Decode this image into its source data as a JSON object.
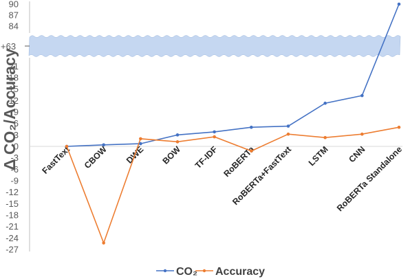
{
  "chart_data": {
    "type": "line",
    "title": "",
    "xlabel": "",
    "ylabel": "Δ CO₂/Accuracy",
    "categories": [
      "FastText",
      "CBOW",
      "DWE",
      "BOW",
      "TF-IDF",
      "RoBERTa",
      "RoBERTa+FastText",
      "LSTM",
      "CNN",
      "RoBERTa Standalone"
    ],
    "series": [
      {
        "name": "CO₂",
        "color": "#4472C4",
        "values": [
          0,
          0.4,
          0.7,
          3.0,
          3.8,
          5.0,
          5.3,
          11.3,
          13.3,
          90
        ]
      },
      {
        "name": "Accuracy",
        "color": "#ED7D31",
        "values": [
          0,
          -25.3,
          2.0,
          1.2,
          2.5,
          -1.2,
          3.2,
          2.3,
          3.2,
          5.0
        ]
      }
    ],
    "yticks_lower": [
      -27,
      -24,
      -21,
      -18,
      -15,
      -12,
      -9,
      -6,
      -3,
      0,
      3,
      6,
      9,
      12,
      15,
      18,
      21
    ],
    "yticks_upper": [
      84,
      87,
      90
    ],
    "axis_break_label": "+63",
    "ylim": [
      -27,
      90
    ],
    "legend_position": "bottom",
    "grid": false
  }
}
